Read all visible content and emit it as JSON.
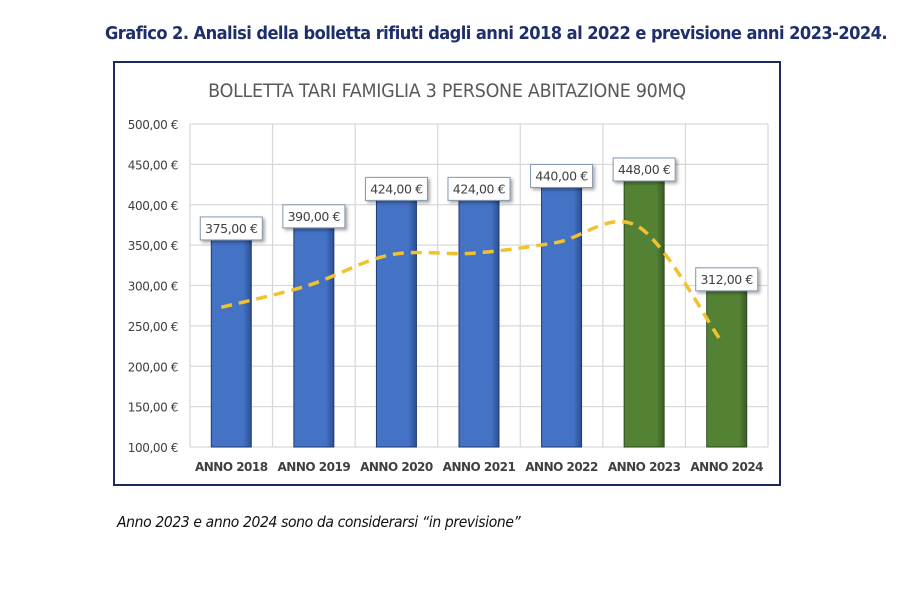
{
  "caption": "Grafico 2. Analisi della bolletta rifiuti dagli anni 2018 al 2022 e previsione anni 2023-2024.",
  "note": "Anno 2023 e anno 2024 sono da considerarsi “in previsione”",
  "colors": {
    "actual_bar": "#4472C4",
    "forecast_bar": "#548235",
    "trendline": "#F2C12E",
    "frame": "#1a2a5e",
    "grid": "#d9d9d9"
  },
  "chart_data": {
    "type": "bar",
    "title": "BOLLETTA TARI FAMIGLIA 3 PERSONE ABITAZIONE 90MQ",
    "xlabel": "",
    "ylabel": "",
    "ylim": [
      100,
      500
    ],
    "yticks": [
      100,
      150,
      200,
      250,
      300,
      350,
      400,
      450,
      500
    ],
    "ytick_labels": [
      "100,00 €",
      "150,00 €",
      "200,00 €",
      "250,00 €",
      "300,00 €",
      "350,00 €",
      "400,00 €",
      "450,00 €",
      "500,00 €"
    ],
    "grid": true,
    "legend": "none",
    "categories": [
      "ANNO 2018",
      "ANNO 2019",
      "ANNO 2020",
      "ANNO 2021",
      "ANNO 2022",
      "ANNO 2023",
      "ANNO 2024"
    ],
    "values": [
      375,
      390,
      424,
      424,
      440,
      448,
      312
    ],
    "data_labels": [
      "375,00 €",
      "390,00 €",
      "424,00 €",
      "424,00 €",
      "440,00 €",
      "448,00 €",
      "312,00 €"
    ],
    "bar_kind": [
      "actual",
      "actual",
      "actual",
      "actual",
      "actual",
      "forecast",
      "forecast"
    ],
    "trendline": {
      "style": "dashed smooth",
      "values": [
        273,
        300,
        338,
        340,
        353,
        373,
        232
      ]
    }
  }
}
